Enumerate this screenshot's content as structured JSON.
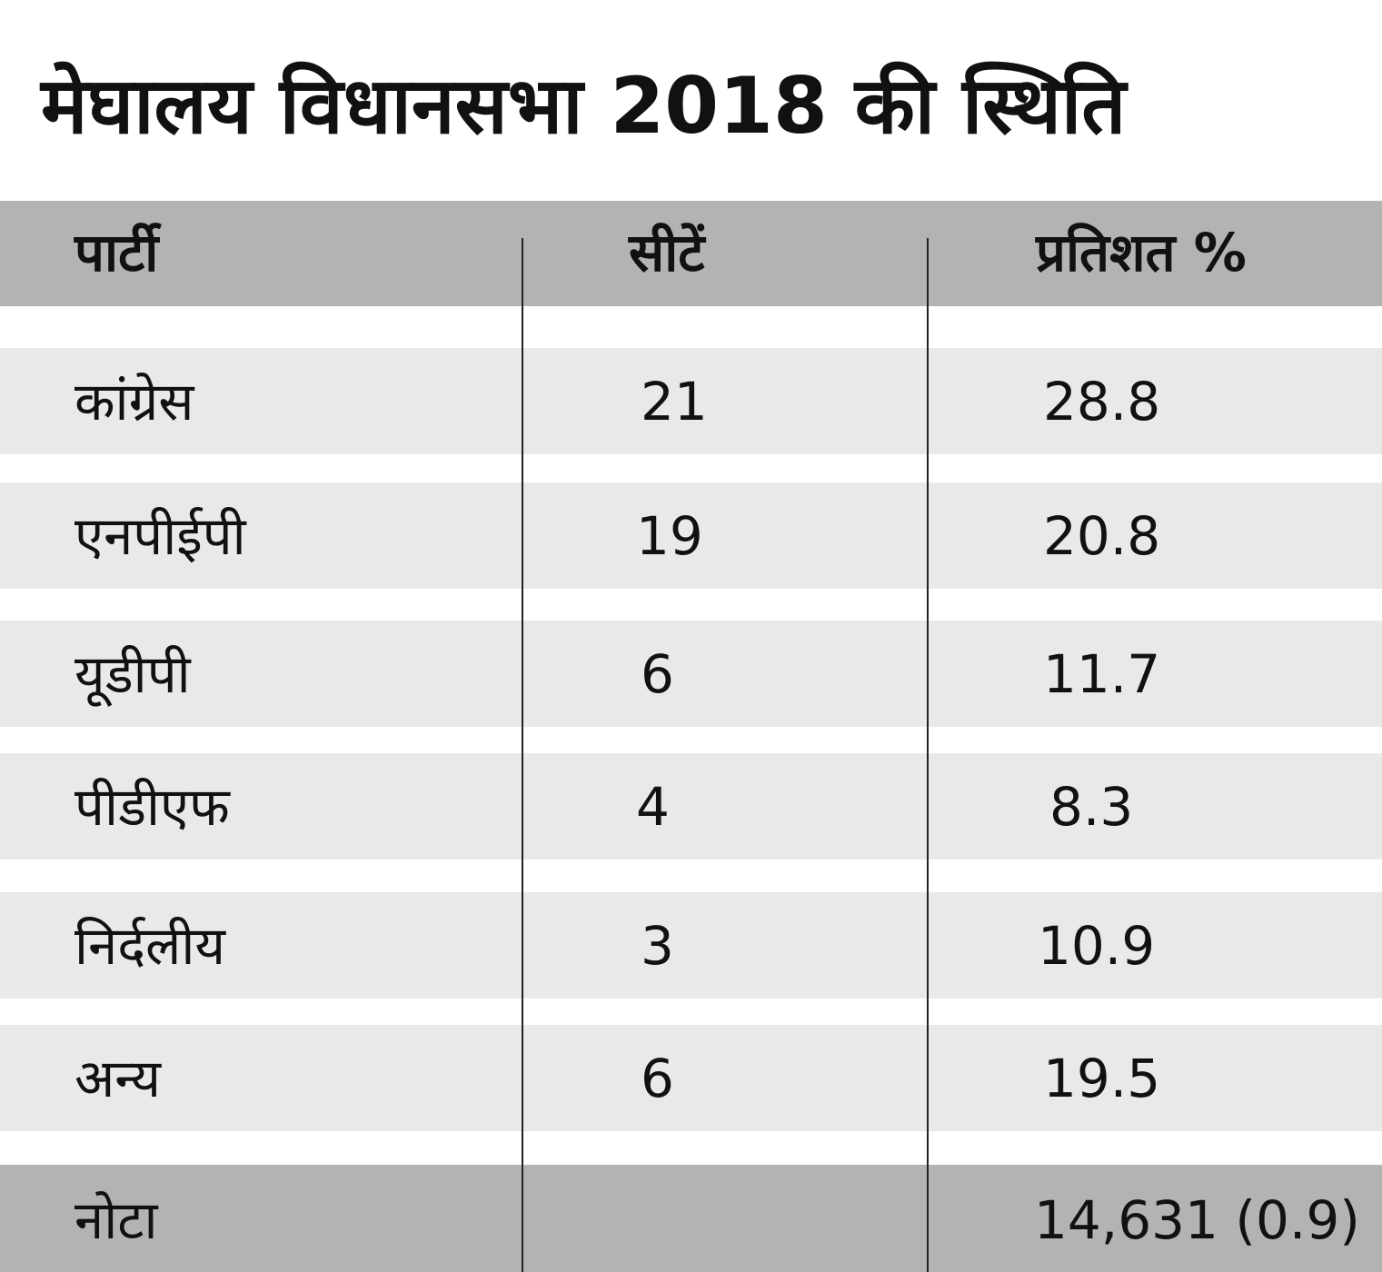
{
  "title": "मेघालय विधानसभा 2018 की स्थिति",
  "headers": [
    "पार्टी",
    "सीटें",
    "प्रतिशत %"
  ],
  "rows": [
    {
      "party": "कांग्रेस",
      "seats": "21",
      "percent": "28.8"
    },
    {
      "party": "एनपीईपी",
      "seats": "19",
      "percent": "20.8"
    },
    {
      "party": "यूडीपी",
      "seats": "6",
      "percent": "11.7"
    },
    {
      "party": "पीडीएफ",
      "seats": "4",
      "percent": "8.3"
    },
    {
      "party": "निर्दलीय",
      "seats": "3",
      "percent": "10.9"
    },
    {
      "party": "अन्य",
      "seats": "6",
      "percent": "19.5"
    }
  ],
  "nota": {
    "party": "नोटा",
    "seats": "",
    "percent": "14,631 (0.9)"
  },
  "colors": {
    "header_bg": "#b3b3b3",
    "row_bg": "#e9e9e9",
    "text": "#111111"
  }
}
